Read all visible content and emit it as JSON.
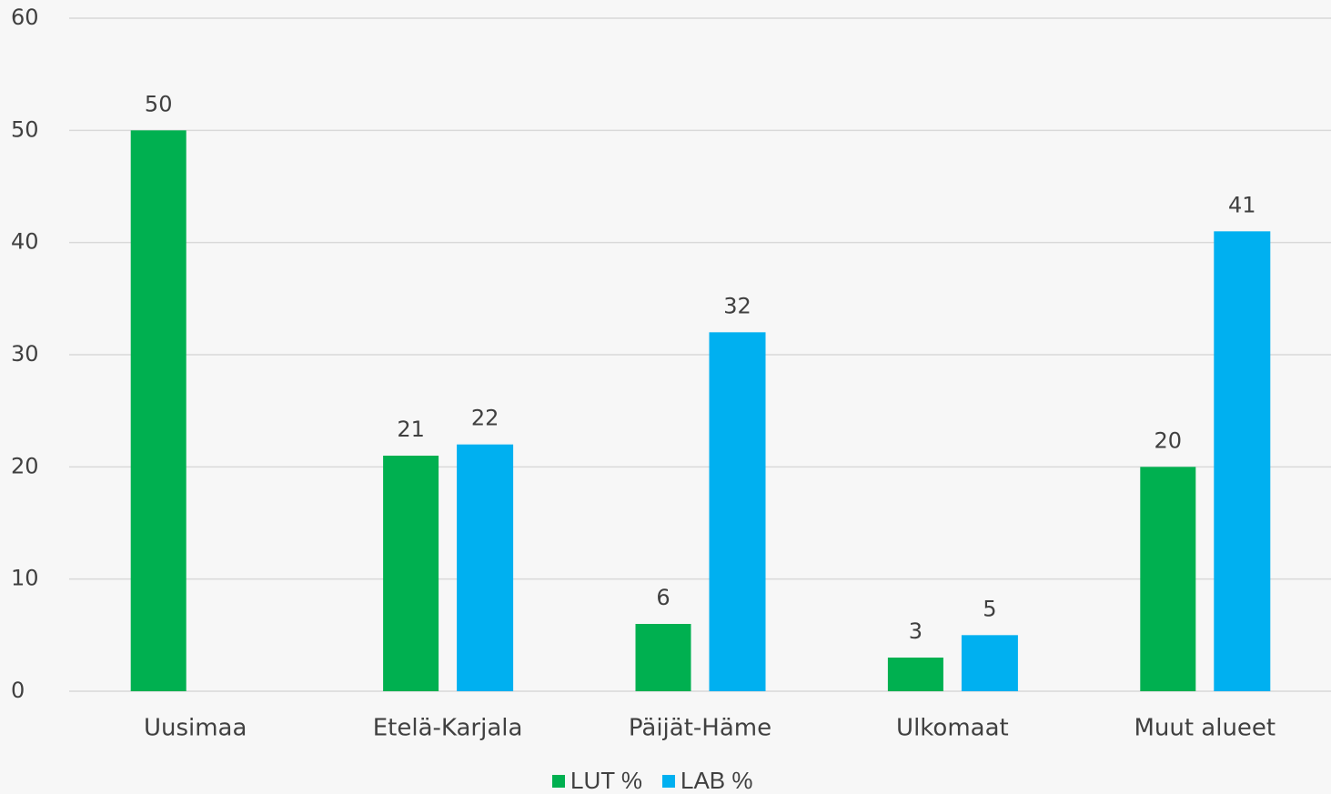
{
  "chart_data": {
    "type": "bar",
    "categories": [
      "Uusimaa",
      "Etelä-Karjala",
      "Päijät-Häme",
      "Ulkomaat",
      "Muut alueet"
    ],
    "series": [
      {
        "name": "LUT %",
        "color": "#00b050",
        "values": [
          50,
          21,
          6,
          3,
          20
        ]
      },
      {
        "name": "LAB %",
        "color": "#00b0f0",
        "values": [
          null,
          22,
          32,
          5,
          41
        ]
      }
    ],
    "ylim": [
      0,
      60
    ],
    "yticks": [
      0,
      10,
      20,
      30,
      40,
      50,
      60
    ],
    "grid": true,
    "legend": "bottom"
  }
}
